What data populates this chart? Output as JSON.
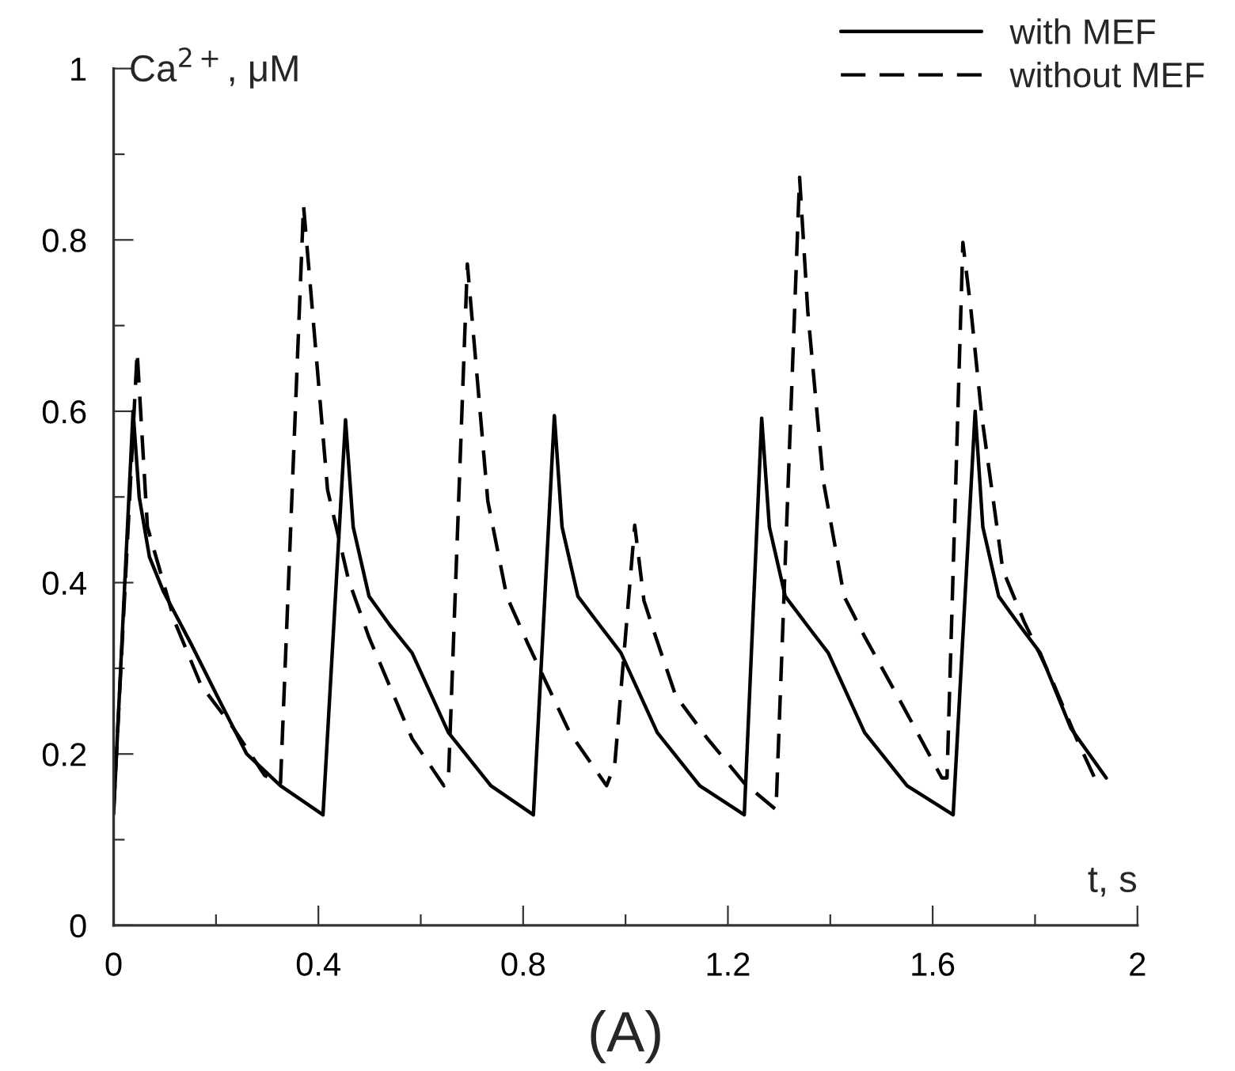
{
  "chart_data": {
    "type": "line",
    "xlabel": "t, s",
    "ylabel": "Ca$^{2+}$, μM",
    "annotations": [
      "(A)"
    ],
    "xlim": [
      0,
      2
    ],
    "ylim": [
      0,
      1
    ],
    "xticks": [
      0,
      {
        "value": 0.2,
        "label": null
      },
      0.4,
      {
        "value": 0.6,
        "label": null
      },
      0.8,
      {
        "value": 1.0,
        "label": null
      },
      1.2,
      {
        "value": 1.4,
        "label": null
      },
      1.6,
      {
        "value": 1.8,
        "label": null
      },
      2
    ],
    "yticks": [
      0,
      {
        "value": 0.1,
        "label": null
      },
      0.2,
      {
        "value": 0.3,
        "label": null
      },
      0.4,
      {
        "value": 0.5,
        "label": null
      },
      0.6,
      {
        "value": 0.7,
        "label": null
      },
      0.8,
      {
        "value": 0.9,
        "label": null
      },
      1
    ],
    "legend": "top right",
    "grid": false,
    "series": [
      {
        "name": "with MEF",
        "color": "#000000",
        "line_style": "solid",
        "x": [
          0,
          0.038,
          0.05,
          0.07,
          0.097,
          0.15,
          0.202,
          0.26,
          0.326,
          0.409,
          0.453,
          0.468,
          0.499,
          0.54,
          0.583,
          0.654,
          0.737,
          0.82,
          0.861,
          0.876,
          0.907,
          0.95,
          0.991,
          1.062,
          1.145,
          1.232,
          1.266,
          1.281,
          1.312,
          1.355,
          1.396,
          1.467,
          1.55,
          1.64,
          1.683,
          1.698,
          1.729,
          1.77,
          1.81,
          1.87,
          1.939
        ],
        "values": [
          0.13,
          0.6,
          0.5,
          0.43,
          0.39,
          0.33,
          0.268,
          0.2,
          0.163,
          0.129,
          0.59,
          0.465,
          0.384,
          0.35,
          0.318,
          0.225,
          0.163,
          0.129,
          0.595,
          0.465,
          0.384,
          0.35,
          0.318,
          0.225,
          0.163,
          0.129,
          0.592,
          0.465,
          0.384,
          0.35,
          0.318,
          0.225,
          0.163,
          0.129,
          0.6,
          0.465,
          0.384,
          0.35,
          0.318,
          0.23,
          0.172
        ]
      },
      {
        "name": "without MEF",
        "color": "#000000",
        "line_style": "dashed",
        "x": [
          0,
          0.046,
          0.066,
          0.119,
          0.171,
          0.233,
          0.295,
          0.326,
          0.371,
          0.418,
          0.459,
          0.499,
          0.583,
          0.645,
          0.654,
          0.691,
          0.731,
          0.768,
          0.809,
          0.891,
          0.963,
          0.979,
          1.018,
          1.036,
          1.056,
          1.098,
          1.16,
          1.232,
          1.294,
          1.34,
          1.356,
          1.386,
          1.427,
          1.468,
          1.531,
          1.618,
          1.628,
          1.659,
          1.675,
          1.696,
          1.737,
          1.779,
          1.829,
          1.881,
          1.918
        ],
        "values": [
          0.135,
          0.669,
          0.465,
          0.355,
          0.28,
          0.231,
          0.175,
          0.166,
          0.84,
          0.508,
          0.403,
          0.336,
          0.218,
          0.163,
          0.17,
          0.772,
          0.495,
          0.384,
          0.329,
          0.225,
          0.163,
          0.188,
          0.467,
          0.379,
          0.342,
          0.268,
          0.218,
          0.166,
          0.135,
          0.873,
          0.717,
          0.52,
          0.384,
          0.336,
          0.268,
          0.172,
          0.172,
          0.797,
          0.717,
          0.594,
          0.415,
          0.354,
          0.292,
          0.218,
          0.17
        ]
      }
    ]
  }
}
